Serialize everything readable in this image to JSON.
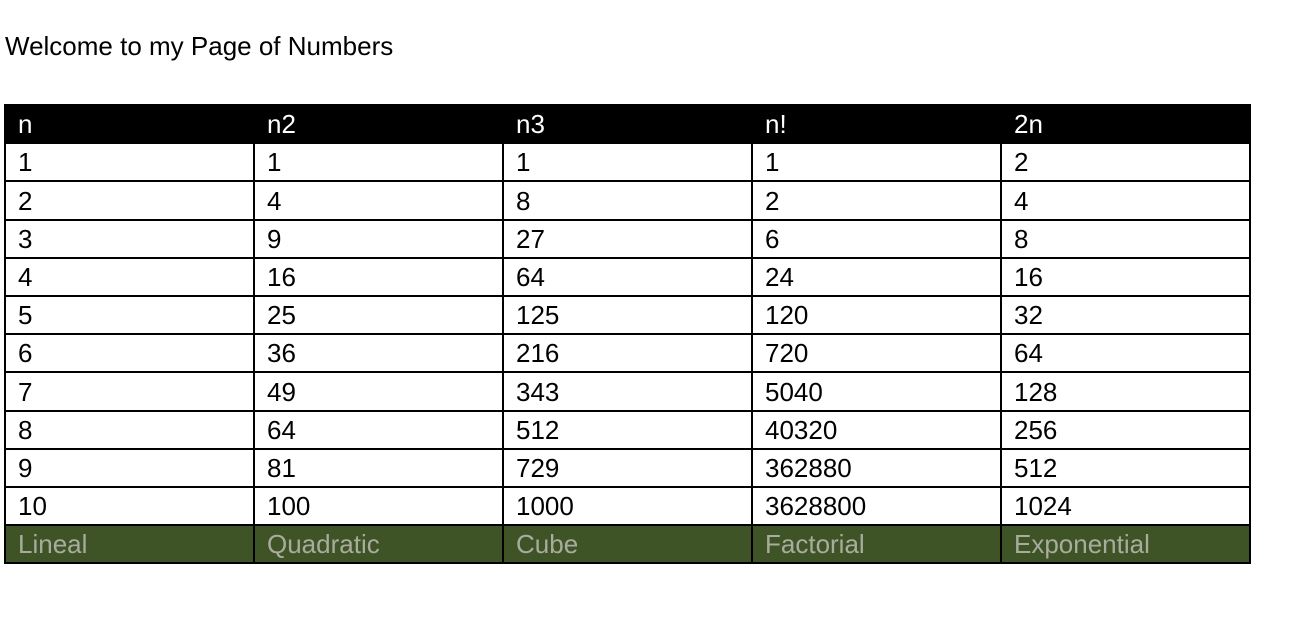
{
  "page": {
    "title": "Welcome to my Page of Numbers"
  },
  "table": {
    "headers": [
      "n",
      "n2",
      "n3",
      "n!",
      "2n"
    ],
    "rows": [
      [
        "1",
        "1",
        "1",
        "1",
        "2"
      ],
      [
        "2",
        "4",
        "8",
        "2",
        "4"
      ],
      [
        "3",
        "9",
        "27",
        "6",
        "8"
      ],
      [
        "4",
        "16",
        "64",
        "24",
        "16"
      ],
      [
        "5",
        "25",
        "125",
        "120",
        "32"
      ],
      [
        "6",
        "36",
        "216",
        "720",
        "64"
      ],
      [
        "7",
        "49",
        "343",
        "5040",
        "128"
      ],
      [
        "8",
        "64",
        "512",
        "40320",
        "256"
      ],
      [
        "9",
        "81",
        "729",
        "362880",
        "512"
      ],
      [
        "10",
        "100",
        "1000",
        "3628800",
        "1024"
      ]
    ],
    "footer": [
      "Lineal",
      "Quadratic",
      "Cube",
      "Factorial",
      "Exponential"
    ]
  },
  "colors": {
    "header_background": "#000000",
    "header_text": "#ffffff",
    "footer_background": "#3e5427",
    "footer_text": "#a9ac9d",
    "border": "#000000"
  }
}
